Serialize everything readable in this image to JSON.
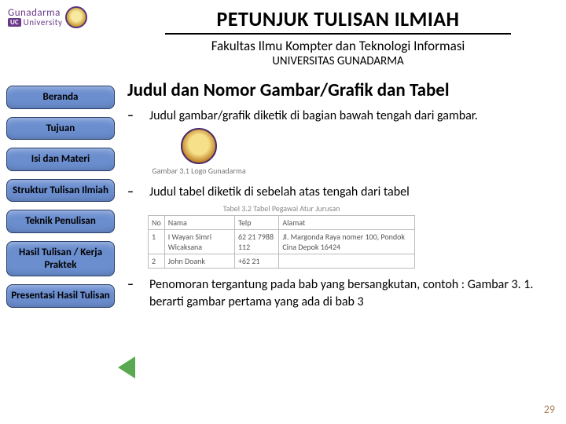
{
  "logo": {
    "brand_top": "Gunadarma",
    "brand_badge": "UC",
    "brand_bottom": "University"
  },
  "header": {
    "title": "PETUNJUK TULISAN ILMIAH",
    "subtitle": "Fakultas Ilmu Kompter dan Teknologi Informasi",
    "subtitle2": "UNIVERSITAS GUNADARMA"
  },
  "sidebar": {
    "items": [
      {
        "label": "Beranda"
      },
      {
        "label": "Tujuan"
      },
      {
        "label": "Isi dan Materi"
      },
      {
        "label": "Struktur Tulisan Ilmiah"
      },
      {
        "label": "Teknik Penulisan"
      },
      {
        "label": "Hasil Tulisan / Kerja Praktek"
      },
      {
        "label": "Presentasi Hasil Tulisan"
      }
    ]
  },
  "content": {
    "heading": "Judul dan Nomor Gambar/Grafik dan Tabel",
    "bullets": [
      "Judul gambar/grafik diketik di bagian bawah tengah dari gambar.",
      "Judul tabel diketik di sebelah atas tengah dari tabel",
      "Penomoran tergantung pada bab yang bersangkutan, contoh : Gambar 3. 1. berarti gambar pertama yang ada di bab 3"
    ],
    "figure_caption": "Gambar 3.1  Logo Gunadarma",
    "table_caption": "Tabel 3.2  Tabel Pegawai Atur Jurusan",
    "table": {
      "columns": [
        "No",
        "Nama",
        "Telp",
        "Alamat"
      ],
      "rows": [
        [
          "1",
          "I Wayan Simri Wicaksana",
          "62  21   7988 112",
          "Jl. Margonda Raya nomer 100, Pondok Cina Depok 16424"
        ],
        [
          "2",
          "John Doank",
          "+62 21",
          ""
        ]
      ]
    }
  },
  "page_number": "29",
  "colors": {
    "nav_bg": "#6b8ecf",
    "nav_border": "#2a3e6b",
    "arrow": "#5aa84f",
    "logo_purple": "#6a3a8a",
    "pagenum": "#a8825a"
  }
}
